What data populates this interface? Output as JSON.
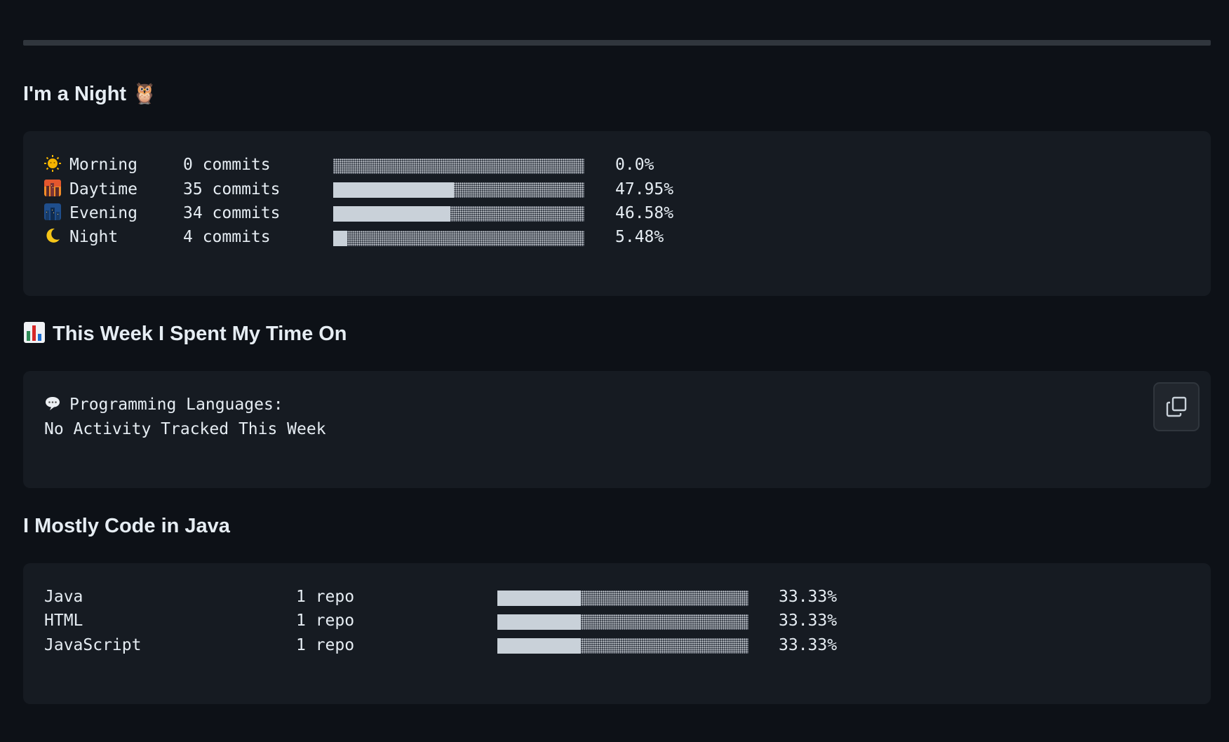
{
  "section_night": {
    "heading": "I'm a Night 🦉",
    "rows": [
      {
        "icon": "sun-icon",
        "label": "Morning",
        "count": "0 commits",
        "percent": "0.0%",
        "fraction": 0.0
      },
      {
        "icon": "cityscape-dusk-icon",
        "label": "Daytime",
        "count": "35 commits",
        "percent": "47.95%",
        "fraction": 0.4795
      },
      {
        "icon": "night-city-icon",
        "label": "Evening",
        "count": "34 commits",
        "percent": "46.58%",
        "fraction": 0.4658
      },
      {
        "icon": "crescent-moon-icon",
        "label": "Night",
        "count": "4 commits",
        "percent": "5.48%",
        "fraction": 0.0548
      }
    ]
  },
  "section_week": {
    "heading": "This Week I Spent My Time On",
    "heading_icon": "bar-chart-icon",
    "line1": "Programming Languages:",
    "line1_icon": "speech-bubble-icon",
    "line2": "No Activity Tracked This Week",
    "copy_icon": "copy-icon"
  },
  "section_languages": {
    "heading": "I Mostly Code in Java",
    "rows": [
      {
        "label": "Java",
        "count": "1 repo",
        "percent": "33.33%",
        "fraction": 0.3333
      },
      {
        "label": "HTML",
        "count": "1 repo",
        "percent": "33.33%",
        "fraction": 0.3333
      },
      {
        "label": "JavaScript",
        "count": "1 repo",
        "percent": "33.33%",
        "fraction": 0.3333
      }
    ]
  },
  "colors": {
    "background": "#0d1117",
    "code_background": "#161b22",
    "bar_fill": "#c9d1d9"
  }
}
